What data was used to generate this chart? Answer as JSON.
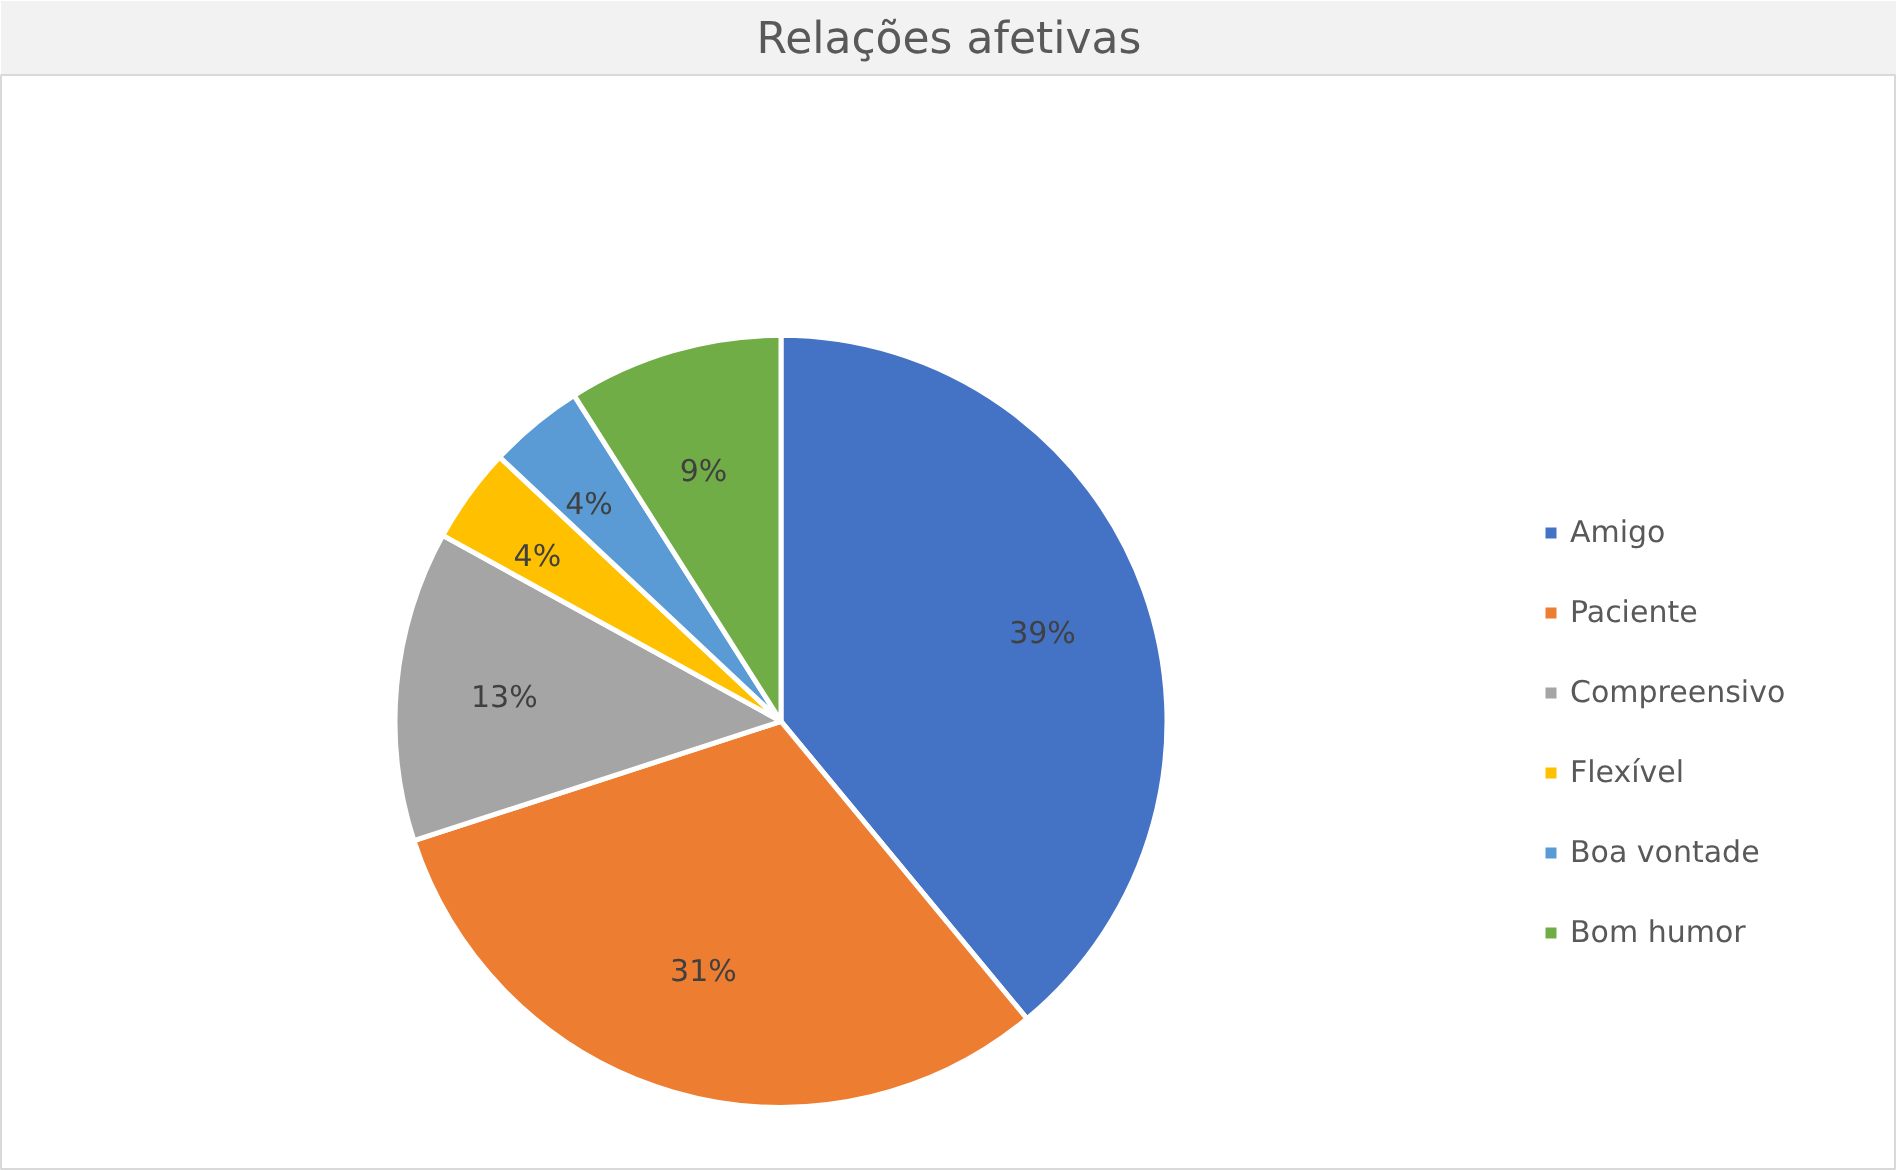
{
  "chart_data": {
    "type": "pie",
    "title": "Relações afetivas",
    "categories": [
      "Amigo",
      "Paciente",
      "Compreensivo",
      "Flexível",
      "Boa vontade",
      "Bom humor"
    ],
    "values": [
      39,
      31,
      13,
      4,
      4,
      9
    ],
    "colors": [
      "#4472c4",
      "#ed7d31",
      "#a5a5a5",
      "#ffc000",
      "#5b9bd5",
      "#70ad47"
    ],
    "value_labels": [
      "39%",
      "31%",
      "13%",
      "4%",
      "4%",
      "9%"
    ],
    "legend": "right"
  }
}
